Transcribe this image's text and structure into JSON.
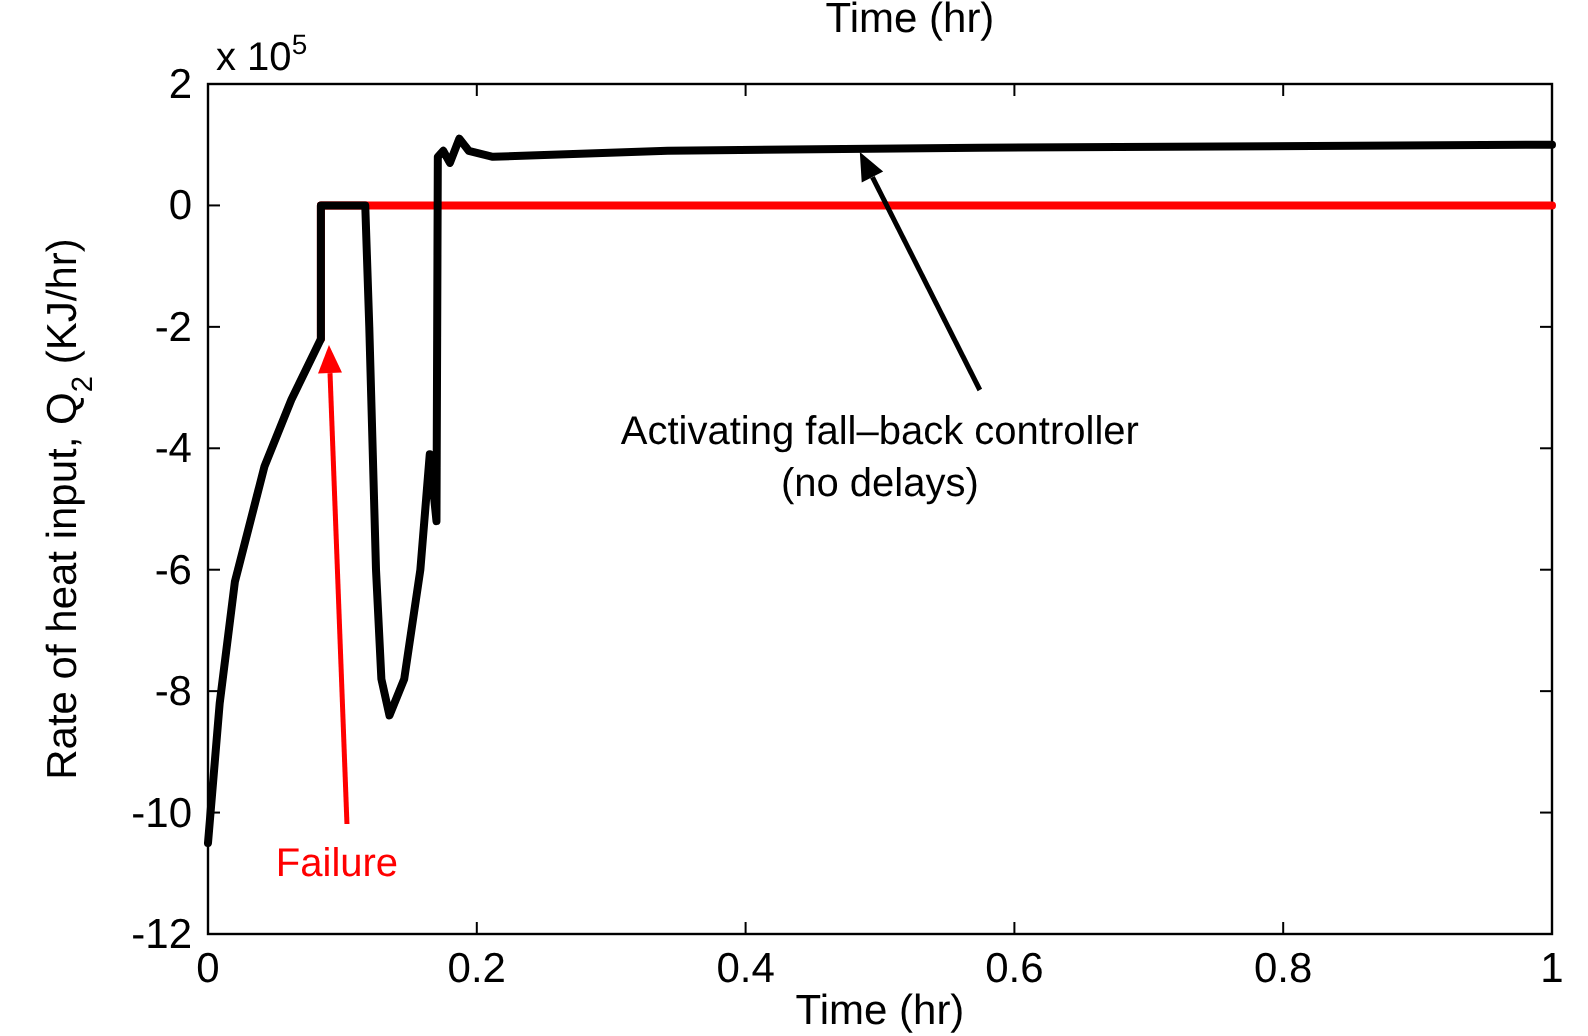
{
  "chart_data": {
    "type": "line",
    "xlabel": "Time (hr)",
    "ylabel": "Rate of heat input, Q$_{2}$ (KJ/hr)",
    "xlim": [
      0,
      1
    ],
    "xticks": [
      0,
      0.2,
      0.4,
      0.6,
      0.8,
      1
    ],
    "ylim": [
      -12,
      2
    ],
    "yticks": [
      -12,
      -10,
      -8,
      -6,
      -4,
      -2,
      0,
      2
    ],
    "grid": false,
    "line_style": "solid",
    "marker": "none",
    "series": [
      {
        "color": "#000000",
        "x": [
          0,
          0.0087,
          0.02,
          0.042,
          0.062,
          0.084,
          0.084,
          0.117,
          0.12,
          0.125,
          0.129,
          0.135,
          0.146,
          0.158,
          0.165,
          0.17,
          0.171,
          0.175,
          0.18,
          0.187,
          0.194,
          0.212,
          0.342,
          0.574,
          1
        ],
        "values": [
          -10.5,
          -8.2,
          -6.2,
          -4.3,
          -3.2,
          -2.2,
          0,
          0,
          -2,
          -6,
          -7.8,
          -8.4,
          -7.8,
          -6,
          -4.1,
          -5.2,
          0.8,
          0.9,
          0.7,
          1.1,
          0.9,
          0.8,
          0.9,
          0.95,
          1
        ]
      },
      {
        "color": "#ff0000",
        "x": [
          0.084,
          0.084,
          1
        ],
        "values": [
          -2.2,
          0,
          0
        ]
      }
    ],
    "annotations": [
      "Time (hr)",
      "x 10$^{5}$",
      "Failure",
      "Activating fall–back controller\n(no delays)"
    ]
  }
}
